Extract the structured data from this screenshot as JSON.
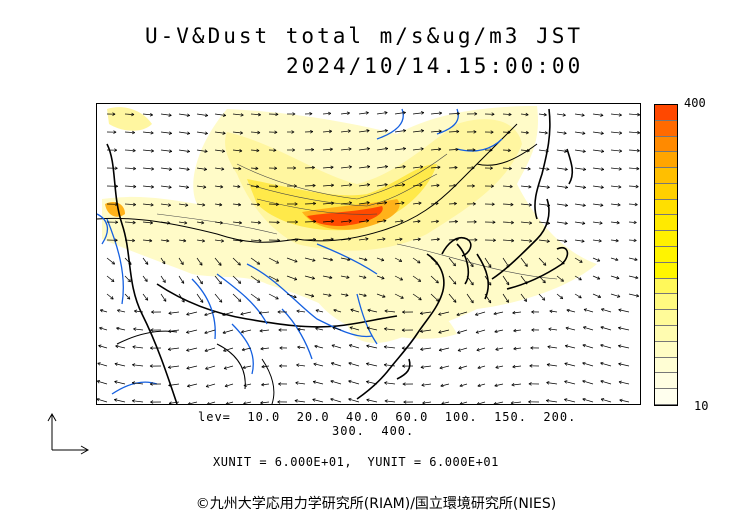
{
  "title": {
    "line1": "U-V&Dust total m/s&ug/m3 JST",
    "line2": "2024/10/14.15:00:00"
  },
  "colorbar": {
    "max_label": "400",
    "min_label": "10",
    "colors": [
      "#ff4800",
      "#ff6a00",
      "#ff8a00",
      "#ffa500",
      "#ffbf00",
      "#ffd000",
      "#ffdf00",
      "#ffea00",
      "#fff000",
      "#fff400",
      "#fff600",
      "#fff85a",
      "#fffa80",
      "#fffb99",
      "#fffcb0",
      "#fffdc4",
      "#fffed4",
      "#fffee2",
      "#ffffee"
    ]
  },
  "levels": {
    "line1": "lev=  10.0  20.0  40.0  60.0  100.  150.  200.",
    "line2": "300.  400."
  },
  "units_text": "XUNIT = 6.000E+01,  YUNIT = 6.000E+01",
  "credit": "©九州大学応用力学研究所(RIAM)/国立環境研究所(NIES)",
  "map": {
    "field": "dust concentration with wind vectors",
    "colors": {
      "light": "#fffbc8",
      "pale": "#fff6a0",
      "yellow": "#ffe94a",
      "orange": "#ffb21a",
      "red": "#ff4a00",
      "coast": "#000000",
      "river": "#1560e0",
      "vector": "#000000"
    }
  }
}
